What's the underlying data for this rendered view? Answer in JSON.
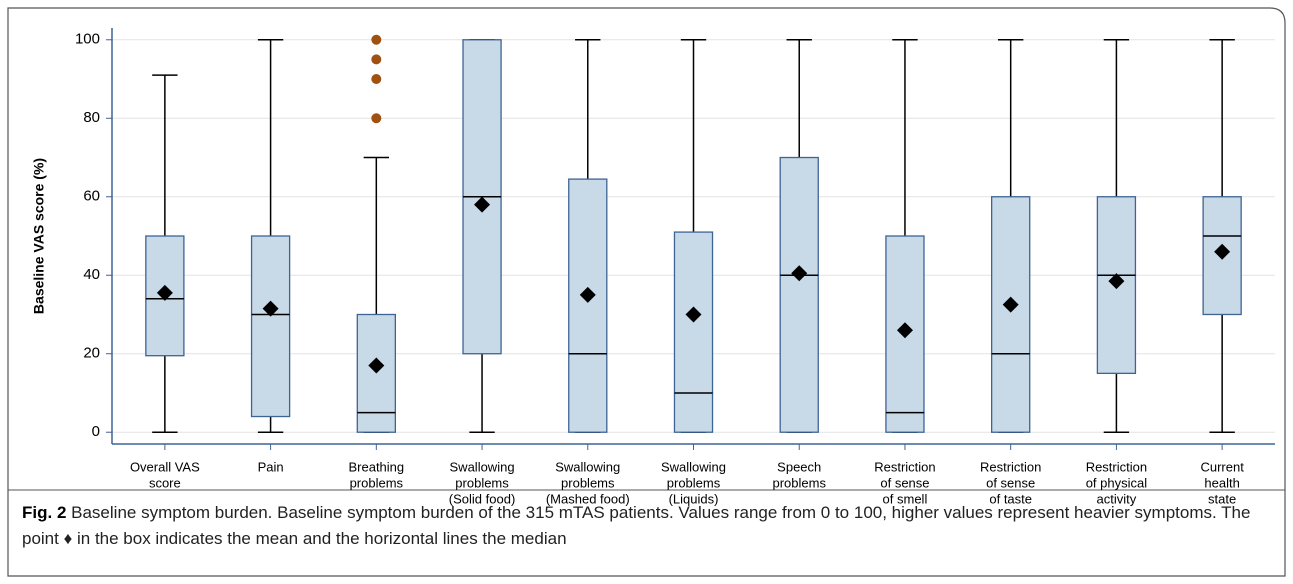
{
  "chart_data": {
    "type": "box",
    "ylabel": "Baseline VAS score (%)",
    "categories": [
      [
        "Overall VAS",
        "score"
      ],
      [
        "Pain"
      ],
      [
        "Breathing",
        "problems"
      ],
      [
        "Swallowing",
        "problems",
        "(Solid food)"
      ],
      [
        "Swallowing",
        "problems",
        "(Mashed food)"
      ],
      [
        "Swallowing",
        "problems",
        "(Liquids)"
      ],
      [
        "Speech",
        "problems"
      ],
      [
        "Restriction",
        "of sense",
        "of smell"
      ],
      [
        "Restriction",
        "of sense",
        "of taste"
      ],
      [
        "Restriction",
        "of physical",
        "activity"
      ],
      [
        "Current",
        "health",
        "state"
      ]
    ],
    "min": [
      0,
      0,
      0,
      0,
      0,
      0,
      0,
      0,
      0,
      0,
      0
    ],
    "q1": [
      19.5,
      4,
      0,
      20,
      0,
      0,
      0,
      0,
      0,
      15,
      30
    ],
    "median": [
      34,
      30,
      5,
      60,
      20,
      10,
      40,
      5,
      20,
      40,
      50
    ],
    "q3": [
      50,
      50,
      30,
      100,
      64.5,
      51,
      70,
      50,
      60,
      60,
      60
    ],
    "max": [
      91,
      100,
      70,
      100,
      100,
      100,
      100,
      100,
      100,
      100,
      100
    ],
    "mean": [
      35.5,
      31.5,
      17,
      58,
      35,
      30,
      40.5,
      26,
      32.5,
      38.5,
      46
    ],
    "outliers": [
      [],
      [],
      [
        80,
        90,
        95,
        100
      ],
      [],
      [],
      [],
      [],
      [],
      [],
      [],
      []
    ],
    "box_color": "#c8d9e8",
    "edge_color": "#3e6494",
    "outlier_color": "#a0500f",
    "ylim": [
      -3,
      103
    ],
    "yticks": [
      0,
      20,
      40,
      60,
      80,
      100
    ],
    "grid": true
  },
  "caption": {
    "label": "Fig. 2",
    "text": "Baseline symptom burden. Baseline symptom burden of the 315 mTAS patients. Values range from 0 to 100, higher values represent heavier symptoms. The point ♦ in the box indicates the mean and the horizontal lines the median"
  }
}
